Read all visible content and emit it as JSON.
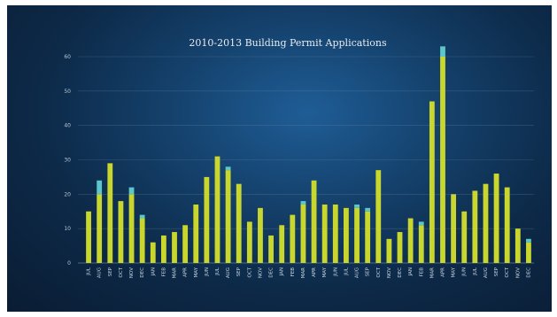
{
  "chart_data": {
    "type": "bar",
    "stacked": true,
    "title": "2010-2013 Building Permit Applications",
    "xlabel": "",
    "ylabel": "",
    "ylim": [
      0,
      60
    ],
    "yticks": [
      0,
      10,
      20,
      30,
      40,
      50,
      60
    ],
    "grid": true,
    "colors": {
      "series_a": "#c8d62e",
      "series_b": "#5cc6c8",
      "background": "#0f2f52"
    },
    "categories": [
      "JUL",
      "AUG",
      "SEP",
      "OCT",
      "NOV",
      "DEC",
      "JAN",
      "FEB",
      "MAR",
      "APR",
      "MAY",
      "JUN",
      "JUL",
      "AUG",
      "SEP",
      "OCT",
      "NOV",
      "DEC",
      "JAN",
      "FEB",
      "MAR",
      "APR",
      "MAY",
      "JUN",
      "JUL",
      "AUG",
      "SEP",
      "OCT",
      "NOV",
      "DEC",
      "JAN",
      "FEB",
      "MAR",
      "APR",
      "MAY",
      "JUN",
      "JUL",
      "AUG",
      "SEP",
      "OCT",
      "NOV",
      "DEC"
    ],
    "series": [
      {
        "values": [
          15,
          20,
          29,
          18,
          20,
          13,
          6,
          8,
          9,
          11,
          17,
          25,
          31,
          27,
          23,
          12,
          16,
          8,
          11,
          14,
          17,
          24,
          17,
          17,
          16,
          16,
          15,
          27,
          7,
          9,
          13,
          11,
          47,
          60,
          20,
          15,
          21,
          23,
          26,
          22,
          10,
          6
        ]
      },
      {
        "values": [
          0,
          4,
          0,
          0,
          2,
          1,
          0,
          0,
          0,
          0,
          0,
          0,
          0,
          1,
          0,
          0,
          0,
          0,
          0,
          0,
          1,
          0,
          0,
          0,
          0,
          1,
          1,
          0,
          0,
          0,
          0,
          1,
          0,
          3,
          0,
          0,
          0,
          0,
          0,
          0,
          0,
          1
        ]
      }
    ]
  }
}
